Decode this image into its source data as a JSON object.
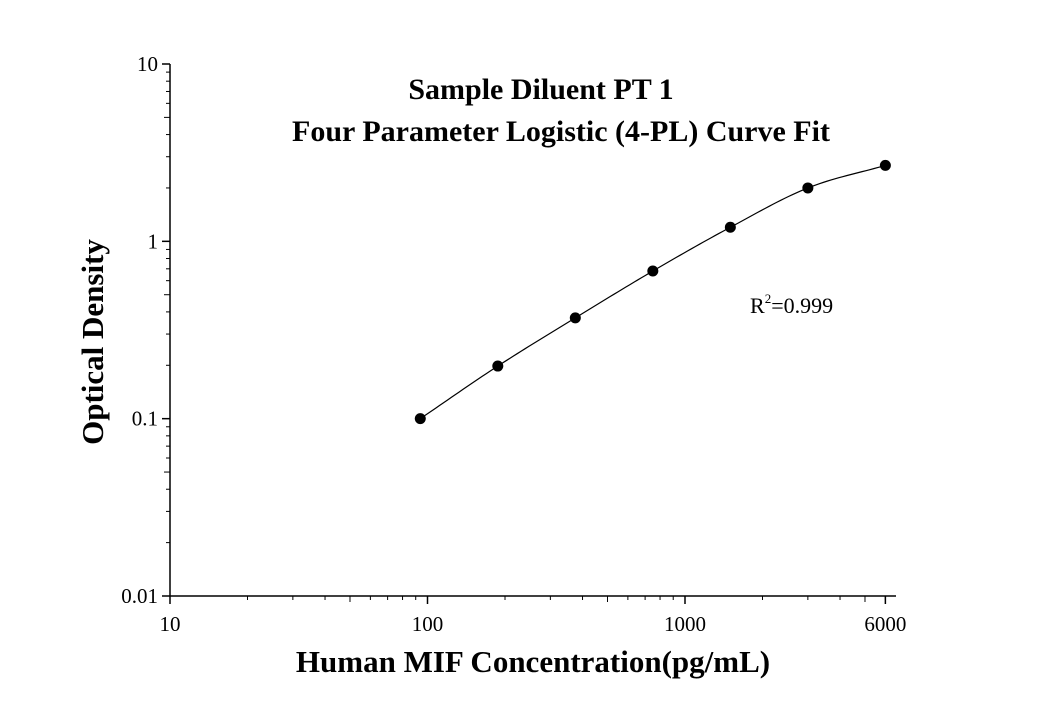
{
  "chart_data": {
    "type": "scatter",
    "title": "Sample Diluent PT 1",
    "subtitle": "Four Parameter Logistic (4-PL) Curve Fit",
    "xlabel": "Human MIF Concentration(pg/mL)",
    "ylabel": "Optical Density",
    "x_scale": "log",
    "y_scale": "log",
    "xlim": [
      10,
      6000
    ],
    "ylim": [
      0.01,
      10
    ],
    "x_ticks": [
      "10",
      "100",
      "1000",
      "6000"
    ],
    "y_ticks": [
      "0.01",
      "0.1",
      "1",
      "10"
    ],
    "grid": false,
    "legend": "none",
    "annotation": {
      "base": "R",
      "sup": "2",
      "value": "=0.999"
    },
    "series": [
      {
        "marker": "filled-circle",
        "fit": "4-PL curve",
        "color": "#000000",
        "points": [
          {
            "x": 93.75,
            "y": 0.1
          },
          {
            "x": 187.5,
            "y": 0.198
          },
          {
            "x": 375,
            "y": 0.37
          },
          {
            "x": 750,
            "y": 0.68
          },
          {
            "x": 1500,
            "y": 1.2
          },
          {
            "x": 3000,
            "y": 2.0
          },
          {
            "x": 6000,
            "y": 2.68
          }
        ]
      }
    ]
  }
}
